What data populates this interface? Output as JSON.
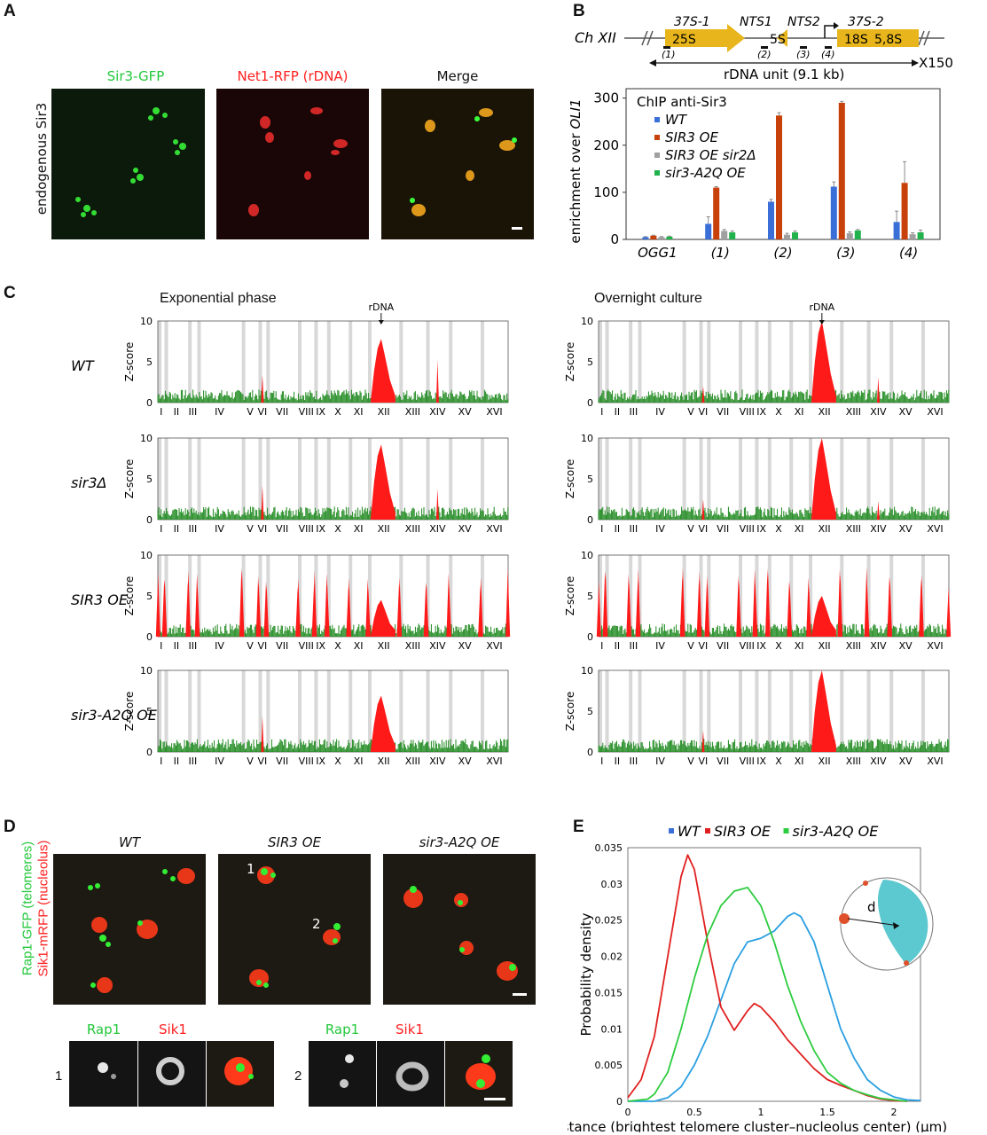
{
  "panels": {
    "A": "A",
    "B": "B",
    "C": "C",
    "D": "D",
    "E": "E"
  },
  "panelA": {
    "ylabel": "endogenous Sir3",
    "captions": [
      "Sir3-GFP",
      "Net1-RFP (rDNA)",
      "Merge"
    ],
    "colors": {
      "green": "#2ecc40",
      "red": "#ff2a2a"
    }
  },
  "panelB": {
    "chromosome": "Ch XII",
    "labels": {
      "s37_1": "37S-1",
      "s25": "25S",
      "nts1": "NTS1",
      "s5": "5S",
      "nts2": "NTS2",
      "s37_2": "37S-2",
      "s18": "18S",
      "s58": "5,8S"
    },
    "probes": [
      "(1)",
      "(2)",
      "(3)",
      "(4)"
    ],
    "unit_label": "rDNA unit (9.1 kb)",
    "repeat": "X150"
  },
  "chart_data": [
    {
      "type": "bar",
      "title": "ChIP anti-Sir3",
      "ylabel": "enrichment  over OLI1",
      "ylim": [
        0,
        320
      ],
      "yticks": [
        "0",
        "100",
        "200",
        "300"
      ],
      "categories": [
        "OGG1",
        "(1)",
        "(2)",
        "(3)",
        "(4)"
      ],
      "series": [
        {
          "name": "WT",
          "color": "#3a6fd8",
          "values": [
            5,
            33,
            80,
            112,
            37
          ],
          "err": [
            1,
            15,
            5,
            10,
            23
          ]
        },
        {
          "name": "SIR3 OE",
          "color": "#c8400a",
          "values": [
            8,
            110,
            263,
            290,
            120
          ],
          "err": [
            1,
            2,
            6,
            3,
            45
          ]
        },
        {
          "name": "SIR3 OE sir2Δ",
          "color": "#a0a0a0",
          "values": [
            5,
            18,
            10,
            13,
            11
          ],
          "err": [
            1,
            3,
            3,
            3,
            3
          ]
        },
        {
          "name": "sir3-A2Q OE",
          "color": "#22b24c",
          "values": [
            6,
            15,
            15,
            19,
            15
          ],
          "err": [
            1,
            3,
            3,
            2,
            5
          ]
        }
      ]
    },
    {
      "type": "area",
      "ylabel": "Z-score",
      "ylim": [
        0,
        10
      ],
      "yticks": [
        "0",
        "5",
        "10"
      ],
      "chromosomes": [
        "I",
        "II",
        "III",
        "IV",
        "V",
        "VI",
        "VII",
        "VIII",
        "IX",
        "X",
        "XI",
        "XII",
        "XIII",
        "XIV",
        "XV",
        "XVI"
      ],
      "annotation": "rDNA",
      "columns": [
        "Exponential phase",
        "Overnight culture"
      ],
      "rows": [
        "WT",
        "sir3Δ",
        "SIR3 OE",
        "sir3-A2Q OE"
      ],
      "rdna_peak": [
        [
          7.8,
          10
        ],
        [
          9.2,
          10
        ],
        [
          4.5,
          5
        ],
        [
          6.9,
          10
        ]
      ],
      "notable_peaks": {
        "WT": {
          "VI": 3.4,
          "XIV": 5.2
        },
        "sir3Δ": {
          "VI": 4.2,
          "XIV": 3.8
        },
        "sir3-A2Q OE": {
          "VI": 4.4
        }
      },
      "telomere_peaks_SIR3_OE": "approx 7-9 at most telomeres"
    },
    {
      "type": "line",
      "xlabel": "Distance (brightest telomere cluster–nucleolus center) (μm)",
      "ylabel": "Probability density",
      "xlim": [
        0,
        2.2
      ],
      "ylim": [
        0,
        0.035
      ],
      "xticks": [
        "0",
        "0.5",
        "1",
        "1.5",
        "2"
      ],
      "yticks": [
        "0",
        "0.005",
        "0.01",
        "0.015",
        "0.02",
        "0.025",
        "0.03",
        "0.035"
      ],
      "series": [
        {
          "name": "WT",
          "color": "#2a9fe0",
          "x": [
            0,
            0.2,
            0.3,
            0.4,
            0.5,
            0.6,
            0.7,
            0.8,
            0.9,
            1.0,
            1.1,
            1.2,
            1.25,
            1.3,
            1.4,
            1.5,
            1.6,
            1.7,
            1.8,
            1.9,
            2.0,
            2.1,
            2.2
          ],
          "y": [
            0,
            0,
            0.0005,
            0.002,
            0.005,
            0.009,
            0.014,
            0.019,
            0.022,
            0.0225,
            0.0235,
            0.0255,
            0.026,
            0.0255,
            0.022,
            0.016,
            0.01,
            0.006,
            0.003,
            0.0015,
            0.0006,
            0.0002,
            0.0001
          ]
        },
        {
          "name": "SIR3 OE",
          "color": "#e02020",
          "x": [
            0,
            0.1,
            0.2,
            0.3,
            0.4,
            0.45,
            0.5,
            0.6,
            0.7,
            0.8,
            0.9,
            0.95,
            1.0,
            1.1,
            1.2,
            1.3,
            1.4,
            1.5,
            1.6,
            1.7,
            1.8,
            1.9,
            2.0,
            2.1
          ],
          "y": [
            0.0005,
            0.003,
            0.009,
            0.02,
            0.031,
            0.034,
            0.032,
            0.022,
            0.013,
            0.0098,
            0.0125,
            0.0135,
            0.013,
            0.011,
            0.0085,
            0.0065,
            0.0045,
            0.003,
            0.0022,
            0.0015,
            0.0008,
            0.0003,
            0.0001,
            0
          ]
        },
        {
          "name": "sir3-A2Q OE",
          "color": "#2ecc40",
          "x": [
            0,
            0.15,
            0.2,
            0.3,
            0.4,
            0.5,
            0.6,
            0.7,
            0.8,
            0.9,
            1.0,
            1.1,
            1.2,
            1.3,
            1.4,
            1.5,
            1.6,
            1.7,
            1.8,
            1.9,
            2.0,
            2.1
          ],
          "y": [
            0,
            0.0003,
            0.001,
            0.004,
            0.01,
            0.017,
            0.023,
            0.027,
            0.029,
            0.0295,
            0.027,
            0.022,
            0.016,
            0.011,
            0.007,
            0.004,
            0.0025,
            0.0015,
            0.0009,
            0.0004,
            0.0002,
            0
          ]
        }
      ],
      "legend": [
        "WT",
        "SIR3 OE",
        "sir3-A2Q OE"
      ],
      "inset_label": "d"
    }
  ],
  "panelD": {
    "ylabel_green": "Rap1-GFP (telomeres)",
    "ylabel_red": "Sik1-mRFP (nucleolus)",
    "captions": [
      "WT",
      "SIR3 OE",
      "sir3-A2Q OE"
    ],
    "cell_labels": [
      "1",
      "2"
    ],
    "sub_captions": [
      "Rap1",
      "Sik1"
    ]
  }
}
